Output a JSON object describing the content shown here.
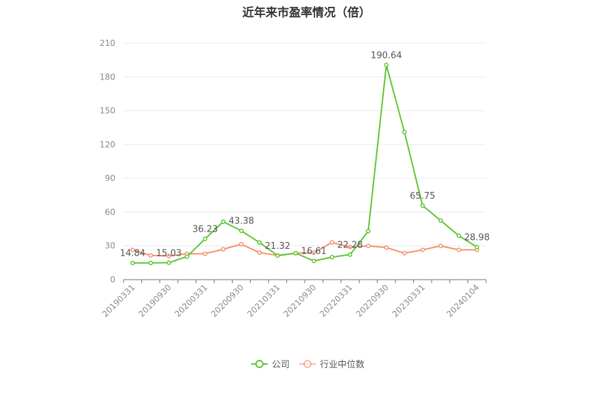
{
  "chart_data": {
    "type": "line",
    "title": "近年来市盈率情况（倍）",
    "x": [
      "20190331",
      "20190630",
      "20190930",
      "20191231",
      "20200331",
      "20200630",
      "20200930",
      "20201231",
      "20210331",
      "20210630",
      "20210930",
      "20211231",
      "20220331",
      "20220630",
      "20220930",
      "20221231",
      "20230331",
      "20230630",
      "20231231",
      "20240104"
    ],
    "x_tick_labels": [
      "20190331",
      "20190930",
      "20200331",
      "20200930",
      "20210331",
      "20210930",
      "20220331",
      "20220930",
      "20230331",
      "20240104"
    ],
    "ylim": [
      0,
      210
    ],
    "y_ticks": [
      0,
      30,
      60,
      90,
      120,
      150,
      180,
      210
    ],
    "grid": true,
    "legend_position": "bottom",
    "series": [
      {
        "name": "公司",
        "color": "#5dc530",
        "values": [
          14.84,
          14.8,
          15.03,
          20.5,
          36.23,
          51.5,
          43.38,
          33.0,
          21.32,
          23.5,
          16.61,
          20.0,
          22.28,
          43.0,
          190.64,
          131.0,
          65.75,
          52.5,
          39.0,
          28.98
        ],
        "data_labels": {
          "0": "14.84",
          "2": "15.03",
          "4": "36.23",
          "6": "43.38",
          "8": "21.32",
          "10": "16.61",
          "12": "22.28",
          "14": "190.64",
          "16": "65.75",
          "19": "28.98"
        }
      },
      {
        "name": "行业中位数",
        "color": "#f39169",
        "values": [
          26.5,
          21.5,
          21.0,
          23.0,
          23.0,
          27.0,
          31.5,
          24.0,
          21.5,
          23.5,
          24.0,
          33.0,
          29.0,
          30.0,
          28.5,
          23.5,
          26.5,
          30.0,
          26.5,
          26.5
        ]
      }
    ]
  }
}
